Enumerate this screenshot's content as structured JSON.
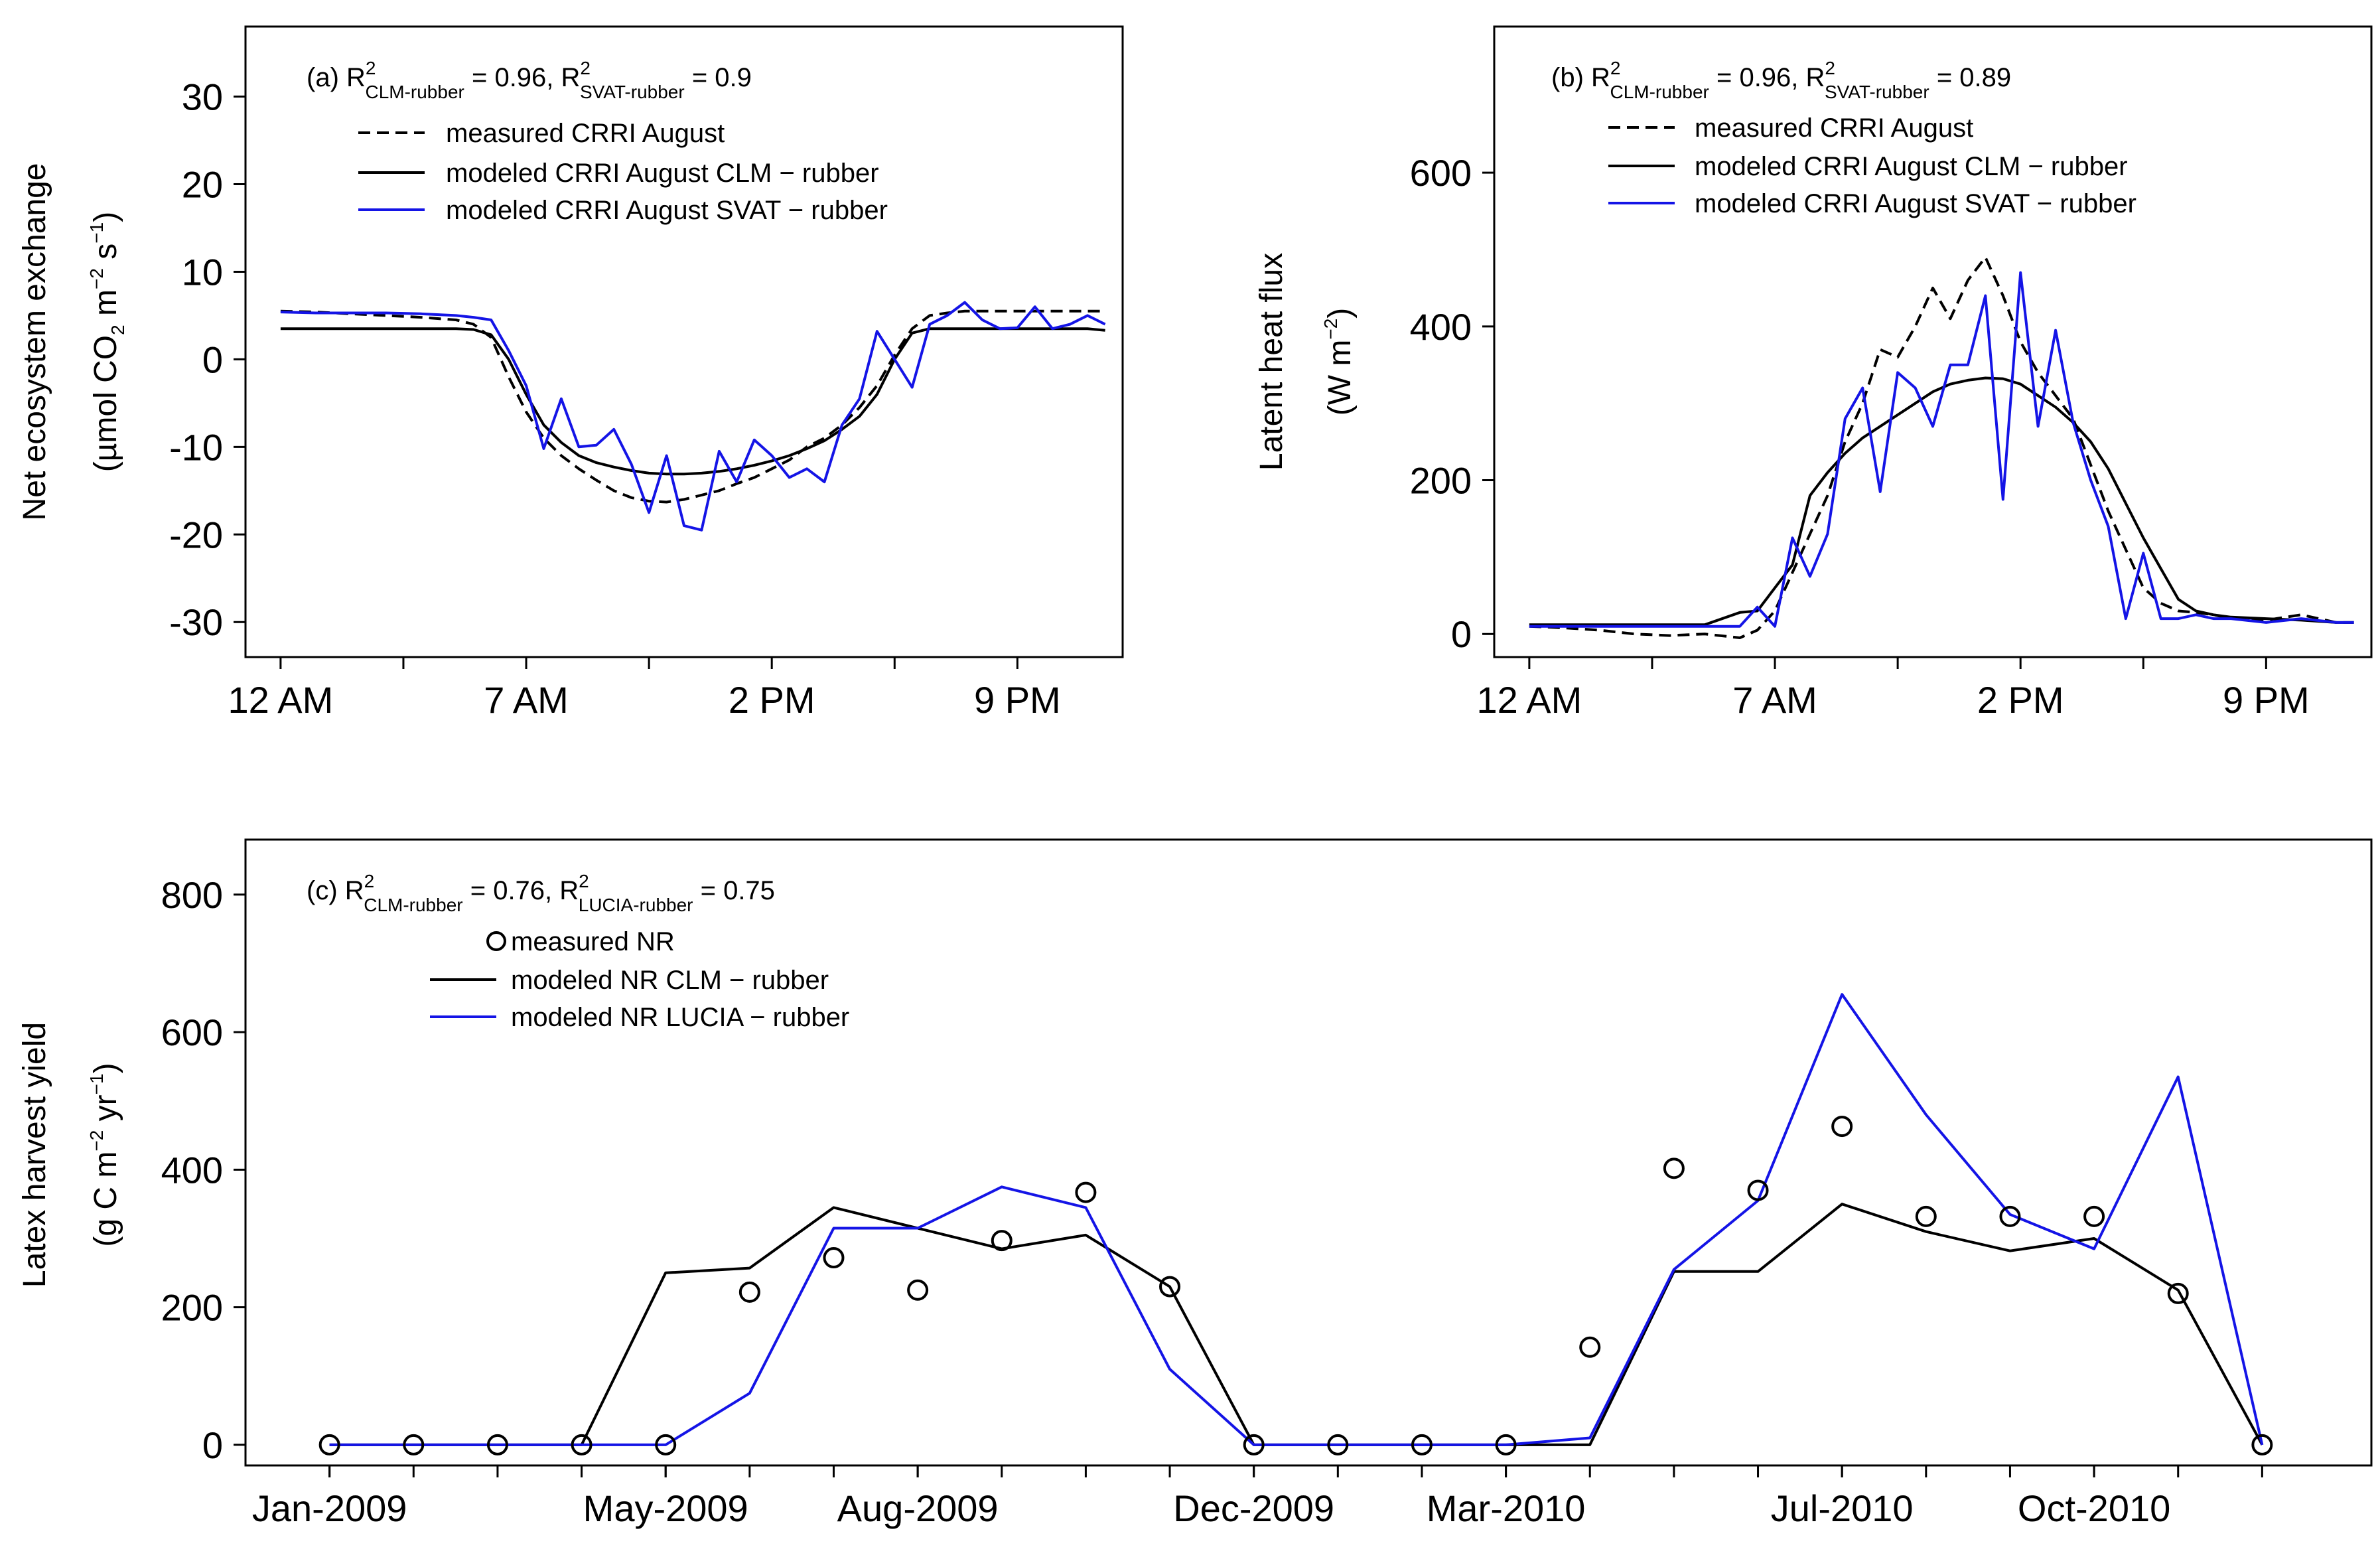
{
  "chart_data": [
    {
      "type": "line",
      "panel": "a",
      "annotation": {
        "prefix": "(a) R",
        "sup1": "2",
        "sub1": "CLM-rubber",
        "mid": " = 0.96, R",
        "sup2": "2",
        "sub2": "SVAT-rubber",
        "suffix": " = 0.9"
      },
      "ylabel_line1": "Net ecosystem exchange",
      "ylabel_line2": {
        "a": "(µmol CO",
        "b": "2",
        "c": " m",
        "d": "−2",
        "e": " s",
        "f": "−1",
        "g": ")"
      },
      "xlabel": "",
      "x_ticklabels": [
        "12 AM",
        "7 AM",
        "2 PM",
        "9 PM"
      ],
      "x_label_hours": [
        0,
        7,
        14,
        21
      ],
      "x_minor_hours": [
        3.5,
        10.5,
        17.5
      ],
      "xlim": [
        -1,
        24
      ],
      "ylim": [
        -34,
        38
      ],
      "y_ticks": [
        -30,
        -20,
        -10,
        0,
        10,
        20,
        30
      ],
      "y_ticklabels": [
        "-30",
        "-20",
        "-10",
        "0",
        "10",
        "20",
        "30"
      ],
      "legend_position": "top-left",
      "series": [
        {
          "name": "measured CRRI August",
          "color": "#000000",
          "dash": "18,10",
          "x": [
            0,
            1,
            2,
            3,
            4,
            5,
            5.5,
            6,
            6.5,
            7,
            7.5,
            8,
            8.5,
            9,
            9.5,
            10,
            10.5,
            11,
            11.5,
            12,
            12.5,
            13,
            13.5,
            14,
            14.5,
            15,
            15.5,
            16,
            16.5,
            17,
            17.5,
            18,
            18.5,
            19,
            19.5,
            20,
            20.5,
            21,
            21.5,
            22,
            22.5,
            23.5
          ],
          "y": [
            5.5,
            5.4,
            5.2,
            5,
            4.8,
            4.5,
            4,
            2.5,
            -2,
            -6,
            -9,
            -11,
            -12.5,
            -13.8,
            -15,
            -15.8,
            -16.2,
            -16.3,
            -16,
            -15.5,
            -15,
            -14.2,
            -13.5,
            -12.5,
            -11.5,
            -10,
            -9,
            -7.5,
            -5.5,
            -3,
            0.5,
            3.5,
            5,
            5.3,
            5.5,
            5.5,
            5.5,
            5.5,
            5.5,
            5.5,
            5.5,
            5.5
          ]
        },
        {
          "name": "modeled CRRI August CLM − rubber",
          "color": "#000000",
          "dash": "",
          "x": [
            0,
            1,
            2,
            3,
            4,
            5,
            5.5,
            6,
            6.5,
            7,
            7.5,
            8,
            8.5,
            9,
            9.5,
            10,
            10.5,
            11,
            11.5,
            12,
            12.5,
            13,
            13.5,
            14,
            14.5,
            15,
            15.5,
            16,
            16.5,
            17,
            17.5,
            18,
            18.5,
            19,
            19.5,
            20,
            21,
            22,
            23,
            23.5
          ],
          "y": [
            3.5,
            3.5,
            3.5,
            3.5,
            3.5,
            3.5,
            3.4,
            2.8,
            0,
            -4,
            -7.5,
            -9.5,
            -11,
            -11.8,
            -12.3,
            -12.7,
            -13,
            -13.1,
            -13.1,
            -13,
            -12.8,
            -12.5,
            -12.1,
            -11.6,
            -11,
            -10.2,
            -9.3,
            -8,
            -6.5,
            -4,
            0,
            3,
            3.5,
            3.5,
            3.5,
            3.5,
            3.5,
            3.5,
            3.5,
            3.3
          ]
        },
        {
          "name": "modeled CRRI August SVAT − rubber",
          "color": "#1414e6",
          "dash": "",
          "x": [
            0,
            1,
            2,
            3,
            4,
            5,
            5.5,
            6,
            6.5,
            7,
            7.5,
            8,
            8.5,
            9,
            9.5,
            10,
            10.5,
            11,
            11.5,
            12,
            12.5,
            13,
            13.5,
            14,
            14.5,
            15,
            15.5,
            16,
            16.5,
            17,
            17.5,
            18,
            18.5,
            19,
            19.5,
            20,
            20.5,
            21,
            21.5,
            22,
            22.5,
            23,
            23.5
          ],
          "y": [
            5.4,
            5.3,
            5.3,
            5.3,
            5.2,
            5,
            4.8,
            4.5,
            1,
            -3,
            -10.2,
            -4.5,
            -10,
            -9.8,
            -8,
            -12,
            -17.5,
            -11,
            -19,
            -19.5,
            -10.5,
            -14,
            -9.2,
            -11,
            -13.5,
            -12.5,
            -14,
            -7.5,
            -4.5,
            3.2,
            0,
            -3.2,
            4,
            5,
            6.5,
            4.5,
            3.5,
            3.6,
            6,
            3.5,
            4,
            5,
            4
          ]
        }
      ]
    },
    {
      "type": "line",
      "panel": "b",
      "annotation": {
        "prefix": "(b) R",
        "sup1": "2",
        "sub1": "CLM-rubber",
        "mid": " = 0.96, R",
        "sup2": "2",
        "sub2": "SVAT-rubber",
        "suffix": " = 0.89"
      },
      "ylabel_line1": "Latent heat flux",
      "ylabel_line2": {
        "a": "(W m",
        "b": "−2",
        "c": ")"
      },
      "xlabel": "",
      "x_ticklabels": [
        "12 AM",
        "7 AM",
        "2 PM",
        "9 PM"
      ],
      "x_label_hours": [
        0,
        7,
        14,
        21
      ],
      "x_minor_hours": [
        3.5,
        10.5,
        17.5
      ],
      "xlim": [
        -1,
        24
      ],
      "ylim": [
        -30,
        790
      ],
      "y_ticks": [
        0,
        200,
        400,
        600
      ],
      "y_ticklabels": [
        "0",
        "200",
        "400",
        "600"
      ],
      "legend_position": "top-left",
      "series": [
        {
          "name": "measured CRRI August",
          "color": "#000000",
          "dash": "18,10",
          "x": [
            0,
            1,
            2,
            3,
            4,
            5,
            6,
            6.5,
            7,
            7.5,
            8,
            8.5,
            9,
            9.5,
            10,
            10.5,
            11,
            11.5,
            12,
            12.5,
            13,
            13.5,
            14,
            14.5,
            15,
            15.5,
            16,
            16.5,
            17,
            17.5,
            18,
            18.5,
            19,
            19.5,
            20,
            21,
            22,
            23,
            23.5
          ],
          "y": [
            10,
            8,
            5,
            0,
            -2,
            0,
            -5,
            5,
            30,
            80,
            130,
            180,
            250,
            300,
            370,
            360,
            400,
            450,
            410,
            460,
            490,
            440,
            380,
            340,
            310,
            280,
            220,
            160,
            110,
            60,
            40,
            30,
            28,
            25,
            20,
            18,
            25,
            15,
            15
          ]
        },
        {
          "name": "modeled CRRI August CLM − rubber",
          "color": "#000000",
          "dash": "",
          "x": [
            0,
            1,
            2,
            3,
            4,
            5,
            6,
            6.5,
            7,
            7.5,
            8,
            8.5,
            9,
            9.5,
            10,
            10.5,
            11,
            11.5,
            12,
            12.5,
            13,
            13.5,
            14,
            14.5,
            15,
            15.5,
            16,
            16.5,
            17,
            17.5,
            18,
            18.5,
            19,
            19.5,
            20,
            21,
            22,
            23,
            23.5
          ],
          "y": [
            12,
            12,
            12,
            12,
            12,
            12,
            28,
            30,
            60,
            90,
            180,
            210,
            235,
            255,
            270,
            285,
            300,
            315,
            325,
            330,
            333,
            332,
            325,
            310,
            295,
            275,
            250,
            215,
            170,
            125,
            85,
            45,
            30,
            25,
            22,
            20,
            18,
            15,
            15
          ]
        },
        {
          "name": "modeled CRRI August SVAT − rubber",
          "color": "#1414e6",
          "dash": "",
          "x": [
            0,
            1,
            2,
            3,
            4,
            5,
            6,
            6.5,
            7,
            7.5,
            8,
            8.5,
            9,
            9.5,
            10,
            10.5,
            11,
            11.5,
            12,
            12.5,
            13,
            13.5,
            14,
            14.5,
            15,
            15.5,
            16,
            16.5,
            17,
            17.5,
            18,
            18.5,
            19,
            19.5,
            20,
            21,
            22,
            23,
            23.5
          ],
          "y": [
            10,
            10,
            10,
            10,
            10,
            10,
            10,
            35,
            10,
            125,
            75,
            130,
            280,
            320,
            185,
            340,
            320,
            270,
            350,
            350,
            440,
            175,
            470,
            270,
            395,
            275,
            200,
            140,
            20,
            105,
            20,
            20,
            25,
            20,
            20,
            15,
            20,
            15,
            15
          ]
        }
      ]
    },
    {
      "type": "line+scatter",
      "panel": "c",
      "annotation": {
        "prefix": "(c) R",
        "sup1": "2",
        "sub1": "CLM-rubber",
        "mid": " = 0.76, R",
        "sup2": "2",
        "sub2": "LUCIA-rubber",
        "suffix": " = 0.75"
      },
      "ylabel_line1": "Latex harvest yield",
      "ylabel_line2": {
        "a": "(g C m",
        "b": "−2",
        "c": " yr",
        "d": "−1",
        "e": ")"
      },
      "xlabel": "",
      "x_ticklabels": [
        "Jan-2009",
        "May-2009",
        "Aug-2009",
        "Dec-2009",
        "Mar-2010",
        "Jul-2010",
        "Oct-2010"
      ],
      "x_label_months": [
        0,
        4,
        7,
        11,
        14,
        18,
        21
      ],
      "x_minor_months": [
        0,
        1,
        2,
        3,
        4,
        5,
        6,
        7,
        8,
        9,
        10,
        11,
        12,
        13,
        14,
        15,
        16,
        17,
        18,
        19,
        20,
        21,
        22,
        23
      ],
      "xlim": [
        -1,
        24.3
      ],
      "ylim": [
        -30,
        880
      ],
      "y_ticks": [
        0,
        200,
        400,
        600,
        800
      ],
      "y_ticklabels": [
        "0",
        "200",
        "400",
        "600",
        "800"
      ],
      "legend_position": "top-left",
      "scatter": {
        "name": "measured NR",
        "color": "#000000",
        "x": [
          0,
          1,
          2,
          3,
          4,
          5,
          6,
          7,
          8,
          9,
          10,
          11,
          12,
          13,
          14,
          15,
          16,
          17,
          18,
          19,
          20,
          21,
          22,
          23
        ],
        "y": [
          0,
          0,
          0,
          0,
          0,
          222,
          272,
          225,
          297,
          367,
          230,
          0,
          0,
          0,
          0,
          142,
          402,
          370,
          463,
          332,
          332,
          332,
          220,
          0
        ]
      },
      "series": [
        {
          "name": "modeled NR CLM − rubber",
          "color": "#000000",
          "dash": "",
          "x": [
            0,
            1,
            2,
            3,
            4,
            5,
            6,
            7,
            8,
            9,
            10,
            11,
            12,
            13,
            14,
            15,
            16,
            17,
            18,
            19,
            20,
            21,
            22,
            23
          ],
          "y": [
            0,
            0,
            0,
            0,
            250,
            257,
            345,
            315,
            285,
            305,
            230,
            0,
            0,
            0,
            0,
            0,
            252,
            252,
            350,
            310,
            282,
            300,
            225,
            0
          ]
        },
        {
          "name": "modeled NR LUCIA − rubber",
          "color": "#1414e6",
          "dash": "",
          "x": [
            0,
            1,
            2,
            3,
            4,
            5,
            6,
            7,
            8,
            9,
            10,
            11,
            12,
            13,
            14,
            15,
            16,
            17,
            18,
            19,
            20,
            21,
            22,
            23
          ],
          "y": [
            0,
            0,
            0,
            0,
            0,
            75,
            315,
            315,
            375,
            345,
            110,
            0,
            0,
            0,
            0,
            10,
            255,
            355,
            655,
            480,
            335,
            285,
            535,
            0
          ]
        }
      ]
    }
  ]
}
